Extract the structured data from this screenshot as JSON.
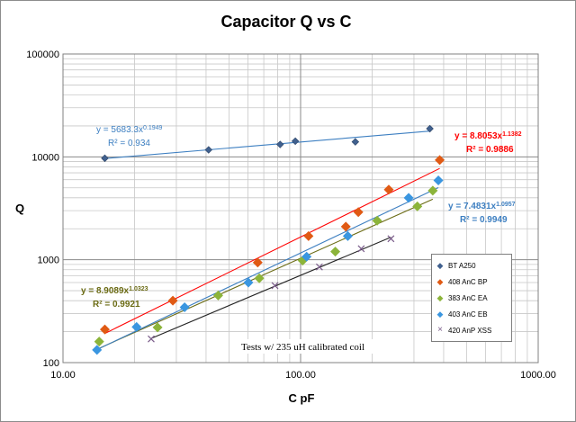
{
  "chart_data": {
    "type": "scatter",
    "title": "Capacitor Q vs C",
    "xlabel": "C pF",
    "ylabel": "Q",
    "x_scale": "log",
    "y_scale": "log",
    "xlim": [
      10,
      1000
    ],
    "ylim": [
      100,
      100000
    ],
    "x_tick_labels": [
      "10.00",
      "100.00",
      "1000.00"
    ],
    "y_tick_labels": [
      "100",
      "1000",
      "10000",
      "100000"
    ],
    "grid": true,
    "legend_position": "right",
    "annotation": "Tests w/ 235 uH calibrated coil",
    "series": [
      {
        "name": "BT A250",
        "color": "#41618f",
        "marker": "diamond",
        "points": [
          [
            15,
            9700
          ],
          [
            41,
            11700
          ],
          [
            82,
            13200
          ],
          [
            95,
            14200
          ],
          [
            170,
            14000
          ],
          [
            350,
            18800
          ]
        ],
        "trend": {
          "a": 5683.3,
          "b": 0.1949,
          "label": "y = 5683.3x",
          "exp": "0.1949",
          "r2": "R² = 0.934",
          "color": "#3d7fc1"
        }
      },
      {
        "name": "408 AnC BP",
        "color": "#e05a14",
        "marker": "diamond",
        "points": [
          [
            15,
            210
          ],
          [
            29,
            400
          ],
          [
            66,
            940
          ],
          [
            108,
            1700
          ],
          [
            155,
            2100
          ],
          [
            175,
            2900
          ],
          [
            235,
            4800
          ],
          [
            385,
            9300
          ]
        ],
        "trend": {
          "a": 8.8053,
          "b": 1.1382,
          "label": "y = 8.8053x",
          "exp": "1.1382",
          "r2": "R² = 0.9886",
          "color": "#ff0000"
        }
      },
      {
        "name": "383 AnC EA",
        "color": "#8cb43a",
        "marker": "diamond",
        "points": [
          [
            14.2,
            160
          ],
          [
            25,
            220
          ],
          [
            45,
            450
          ],
          [
            67,
            660
          ],
          [
            102,
            980
          ],
          [
            140,
            1200
          ],
          [
            210,
            2400
          ],
          [
            310,
            3300
          ],
          [
            360,
            4700
          ]
        ],
        "trend": {
          "a": 8.9089,
          "b": 1.0323,
          "label": "y = 8.9089x",
          "exp": "1.0323",
          "r2": "R² = 0.9921",
          "color": "#6b6b14"
        }
      },
      {
        "name": "403 AnC EB",
        "color": "#3a96e0",
        "marker": "diamond",
        "points": [
          [
            13.9,
            133
          ],
          [
            20.4,
            222
          ],
          [
            32.5,
            345
          ],
          [
            60.3,
            600
          ],
          [
            106,
            1070
          ],
          [
            158,
            1700
          ],
          [
            285,
            4000
          ],
          [
            380,
            5900
          ]
        ],
        "trend": {
          "a": 7.4831,
          "b": 1.0957,
          "label": "y = 7.4831x",
          "exp": "1.0957",
          "r2": "R² = 0.9949",
          "color": "#3d7fc1"
        }
      },
      {
        "name": "420 AnP XSS",
        "color": "#7a5c8a",
        "marker": "x",
        "points": [
          [
            23.5,
            170
          ],
          [
            78,
            560
          ],
          [
            120,
            850
          ],
          [
            180,
            1280
          ],
          [
            240,
            1600
          ]
        ],
        "trend": {
          "color": "#222222",
          "x_range": [
            23.5,
            240
          ]
        }
      }
    ]
  }
}
